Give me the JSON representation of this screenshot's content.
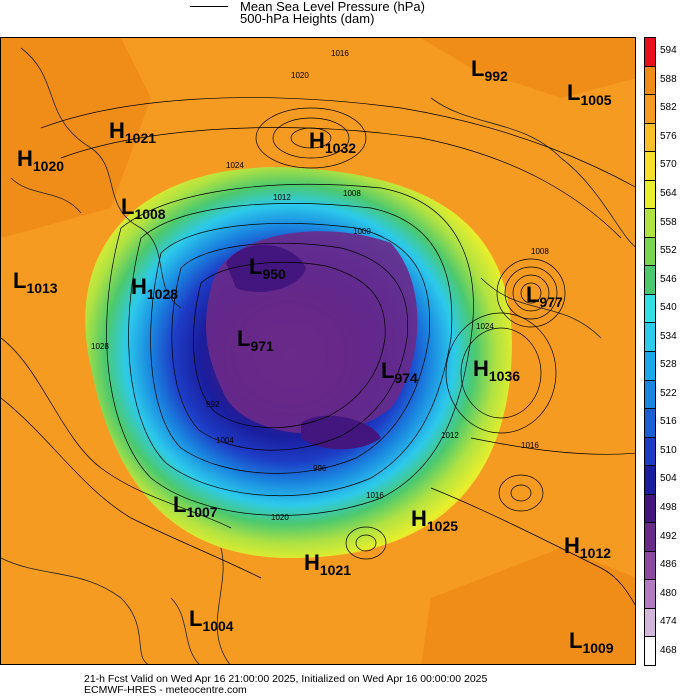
{
  "legend": {
    "line1": "Mean Sea Level Pressure (hPa)",
    "line2": "500-hPa Heights (dam)"
  },
  "footer": {
    "line1": "21-h Fcst Valid on Wed Apr 16 21:00:00 2025, Initialized on Wed Apr 16 00:00:00 2025",
    "line2": "ECMWF-HRES - meteocentre.com"
  },
  "colorbar": {
    "levels": [
      "594",
      "588",
      "582",
      "576",
      "570",
      "564",
      "558",
      "552",
      "546",
      "540",
      "534",
      "528",
      "522",
      "516",
      "510",
      "504",
      "498",
      "492",
      "486",
      "480",
      "474",
      "468"
    ],
    "colors": [
      "#e8101a",
      "#f08c18",
      "#f59b22",
      "#fbbf2a",
      "#f8df2b",
      "#e8ef2c",
      "#b0e242",
      "#7ad552",
      "#4cc96e",
      "#33e0e6",
      "#2ccaeb",
      "#1aa9ea",
      "#1a86e0",
      "#1a5fd4",
      "#1d3cc6",
      "#1a1e9e",
      "#42167e",
      "#6a2a8a",
      "#8e4aa0",
      "#b27ac0",
      "#d2b6dc",
      "#ffffff"
    ]
  },
  "systems": [
    {
      "type": "H",
      "value": "1020"
    },
    {
      "type": "H",
      "value": "1021"
    },
    {
      "type": "H",
      "value": "1032"
    },
    {
      "type": "L",
      "value": "992"
    },
    {
      "type": "L",
      "value": "1005"
    },
    {
      "type": "L",
      "value": "1008"
    },
    {
      "type": "L",
      "value": "950"
    },
    {
      "type": "L",
      "value": "1013"
    },
    {
      "type": "H",
      "value": "1028"
    },
    {
      "type": "L",
      "value": "977"
    },
    {
      "type": "L",
      "value": "971"
    },
    {
      "type": "L",
      "value": "974"
    },
    {
      "type": "H",
      "value": "1036"
    },
    {
      "type": "L",
      "value": "1007"
    },
    {
      "type": "H",
      "value": "1025"
    },
    {
      "type": "H",
      "value": "1012"
    },
    {
      "type": "H",
      "value": "1021"
    },
    {
      "type": "L",
      "value": "1004"
    },
    {
      "type": "L",
      "value": "1009"
    }
  ],
  "contour_labels": [
    "1016",
    "1020",
    "1024",
    "1012",
    "1008",
    "1000",
    "996",
    "992",
    "1004",
    "1028",
    "1020",
    "1016",
    "1024",
    "1012",
    "1008",
    "1016"
  ],
  "colors": {
    "land_line": "#222222",
    "isobar": "#000000"
  }
}
